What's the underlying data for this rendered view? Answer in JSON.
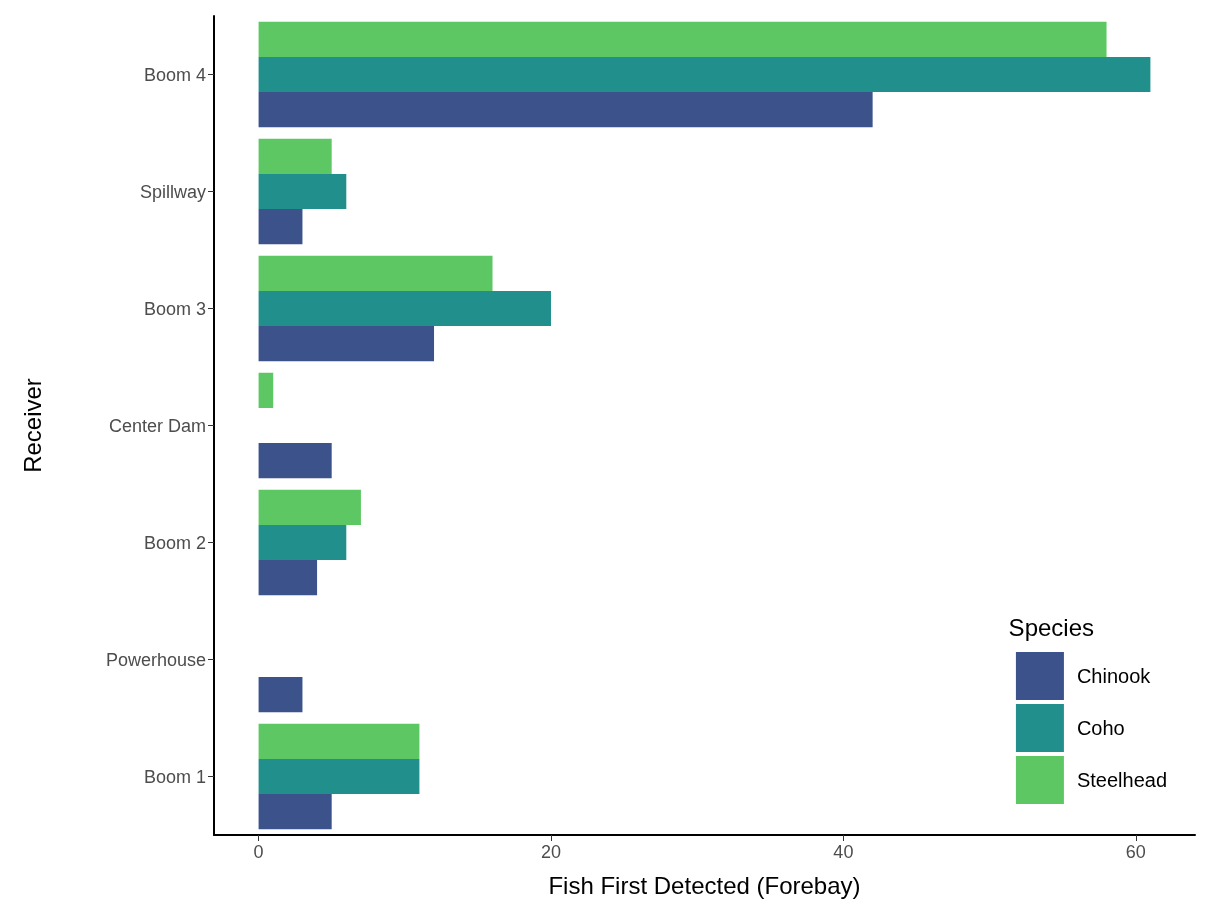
{
  "chart_data": {
    "type": "bar",
    "orientation": "horizontal",
    "xlabel": "Fish First Detected (Forebay)",
    "ylabel": "Receiver",
    "legend_title": "Species",
    "categories": [
      "Boom 4",
      "Spillway",
      "Boom 3",
      "Center Dam",
      "Boom 2",
      "Powerhouse",
      "Boom 1"
    ],
    "series": [
      {
        "name": "Chinook",
        "color": "#3b528b",
        "values": [
          42,
          3,
          12,
          5,
          4,
          3,
          5
        ]
      },
      {
        "name": "Coho",
        "color": "#21908c",
        "values": [
          61,
          6,
          20,
          null,
          6,
          null,
          11
        ]
      },
      {
        "name": "Steelhead",
        "color": "#5dc863",
        "values": [
          58,
          5,
          16,
          1,
          7,
          null,
          11
        ]
      }
    ],
    "xlim": [
      -3.05,
      64.05
    ],
    "xticks": [
      0,
      20,
      40,
      60
    ],
    "grid": false,
    "legend": "bottom right"
  }
}
